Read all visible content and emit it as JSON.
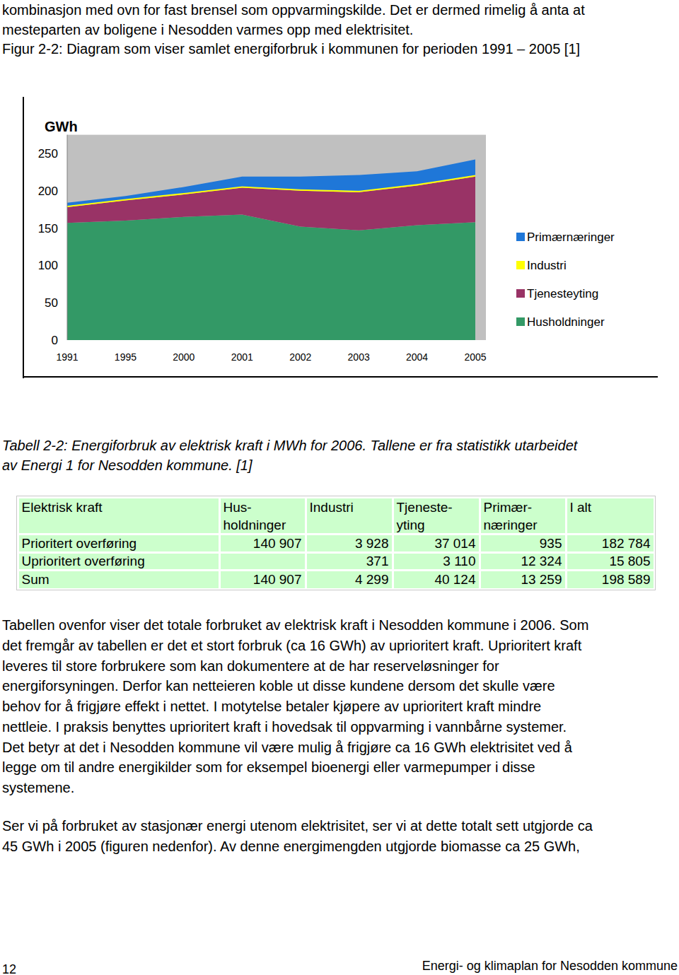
{
  "intro": {
    "lines": [
      "kombinasjon med ovn for fast brensel som oppvarmingskilde. Det er dermed rimelig å anta at",
      "mesteparten av boligene i Nesodden varmes opp med elektrisitet."
    ]
  },
  "chart_data": {
    "type": "area",
    "stacked": true,
    "title": "Figur 2-2: Diagram som viser samlet energiforbruk i kommunen for perioden 1991 – 2005 [1]",
    "y_label": "GWh",
    "categories": [
      "1991",
      "1995",
      "2000",
      "2001",
      "2002",
      "2003",
      "2004",
      "2005"
    ],
    "series": [
      {
        "name": "Husholdninger",
        "color": "#339966",
        "values": [
          157,
          160,
          165,
          168,
          152,
          147,
          154,
          158
        ]
      },
      {
        "name": "Tjenesteyting",
        "color": "#993366",
        "values": [
          21,
          27,
          30,
          36,
          48,
          51,
          53,
          61
        ]
      },
      {
        "name": "Industri",
        "color": "#ffff00",
        "values": [
          2,
          2,
          2,
          2,
          2,
          2,
          2,
          2
        ]
      },
      {
        "name": "Primærnæringer",
        "color": "#1f77d8",
        "values": [
          4,
          4,
          8,
          13,
          17,
          21,
          17,
          21
        ]
      }
    ],
    "ylim": [
      0,
      275
    ],
    "yticks": [
      0,
      50,
      100,
      150,
      200,
      250
    ],
    "legend": "right"
  },
  "table": {
    "caption": [
      "Tabell 2-2: Energiforbruk av elektrisk kraft i MWh for 2006. Tallene er fra statistikk utarbeidet",
      "av Energi 1 for Nesodden kommune. [1]"
    ],
    "header": [
      [
        "Elektrisk kraft"
      ],
      [
        "Hus-",
        "holdninger"
      ],
      [
        "Industri"
      ],
      [
        "Tjeneste-",
        "yting"
      ],
      [
        "Primær-",
        "næringer"
      ],
      [
        "I alt"
      ]
    ],
    "rows": [
      [
        "Prioritert overføring",
        "140 907",
        "3 928",
        "37 014",
        "935",
        "182 784"
      ],
      [
        "Uprioritert overføring",
        null,
        "371",
        "3 110",
        "12 324",
        "15 805"
      ],
      [
        "Sum",
        "140 907",
        "4 299",
        "40 124",
        "13 259",
        "198 589"
      ]
    ]
  },
  "body": {
    "paragraphs": [
      [
        "Tabellen ovenfor viser det totale forbruket av elektrisk kraft i Nesodden kommune i 2006. Som",
        "det fremgår av tabellen er det et stort forbruk (ca 16 GWh) av uprioritert kraft. Uprioritert kraft",
        "leveres til store forbrukere som kan dokumentere at de har reserveløsninger for",
        "energiforsyningen. Derfor kan netteieren koble ut disse kundene dersom det skulle være",
        "behov for å frigjøre effekt i nettet. I motytelse betaler kjøpere av uprioritert kraft mindre",
        "nettleie. I praksis benyttes uprioritert kraft i hovedsak til oppvarming i vannbårne systemer.",
        "Det betyr at det i Nesodden kommune vil være mulig å frigjøre ca 16 GWh elektrisitet ved å",
        "legge om til andre energikilder som for eksempel bioenergi eller varmepumper i disse",
        "systemene."
      ],
      [
        "Ser vi på forbruket av stasjonær energi utenom elektrisitet, ser vi at dette totalt sett utgjorde ca",
        "45 GWh i 2005 (figuren nedenfor). Av denne energimengden utgjorde biomasse ca 25 GWh,"
      ]
    ]
  },
  "footer": {
    "page": 12,
    "title": "Energi- og klimaplan for Nesodden kommune"
  }
}
